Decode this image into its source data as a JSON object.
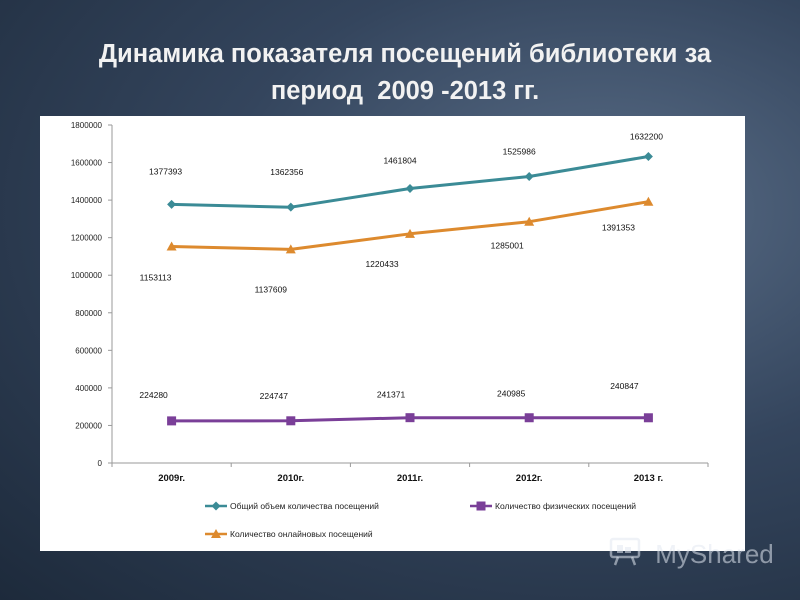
{
  "slide": {
    "title_line1": "Динамика показателя посещений библиотеки за",
    "title_line2": "период  2009 -2013 гг."
  },
  "watermark": {
    "text": "MyShared",
    "icon": "presentation-board-icon"
  },
  "chart_data": {
    "type": "line",
    "title": "",
    "xlabel": "",
    "ylabel": "",
    "categories": [
      "2009г.",
      "2010г.",
      "2011г.",
      "2012г.",
      "2013 г."
    ],
    "ylim": [
      0,
      1800000
    ],
    "yticks": [
      0,
      200000,
      400000,
      600000,
      800000,
      1000000,
      1200000,
      1400000,
      1600000,
      1800000
    ],
    "grid": false,
    "legend_position": "bottom",
    "series": [
      {
        "name": "Общий объем количества  посещений",
        "values": [
          1377393,
          1362356,
          1461804,
          1525986,
          1632200
        ],
        "color": "#3b8b96",
        "marker": "diamond"
      },
      {
        "name": "Количество физических посещений",
        "values": [
          224280,
          224747,
          241371,
          240985,
          240847
        ],
        "color": "#7a3f98",
        "marker": "square"
      },
      {
        "name": "Количество  онлайновых  посещений",
        "values": [
          1153113,
          1137609,
          1220433,
          1285001,
          1391353
        ],
        "color": "#dd8a2e",
        "marker": "triangle"
      }
    ],
    "data_labels": [
      [
        "1377393",
        "1362356",
        "1461804",
        "1525986",
        "1632200"
      ],
      [
        "224280",
        "224747",
        "241371",
        "240985",
        "240847"
      ],
      [
        "1153113",
        "1137609",
        "1220433",
        "1285001",
        "1391353"
      ]
    ]
  }
}
